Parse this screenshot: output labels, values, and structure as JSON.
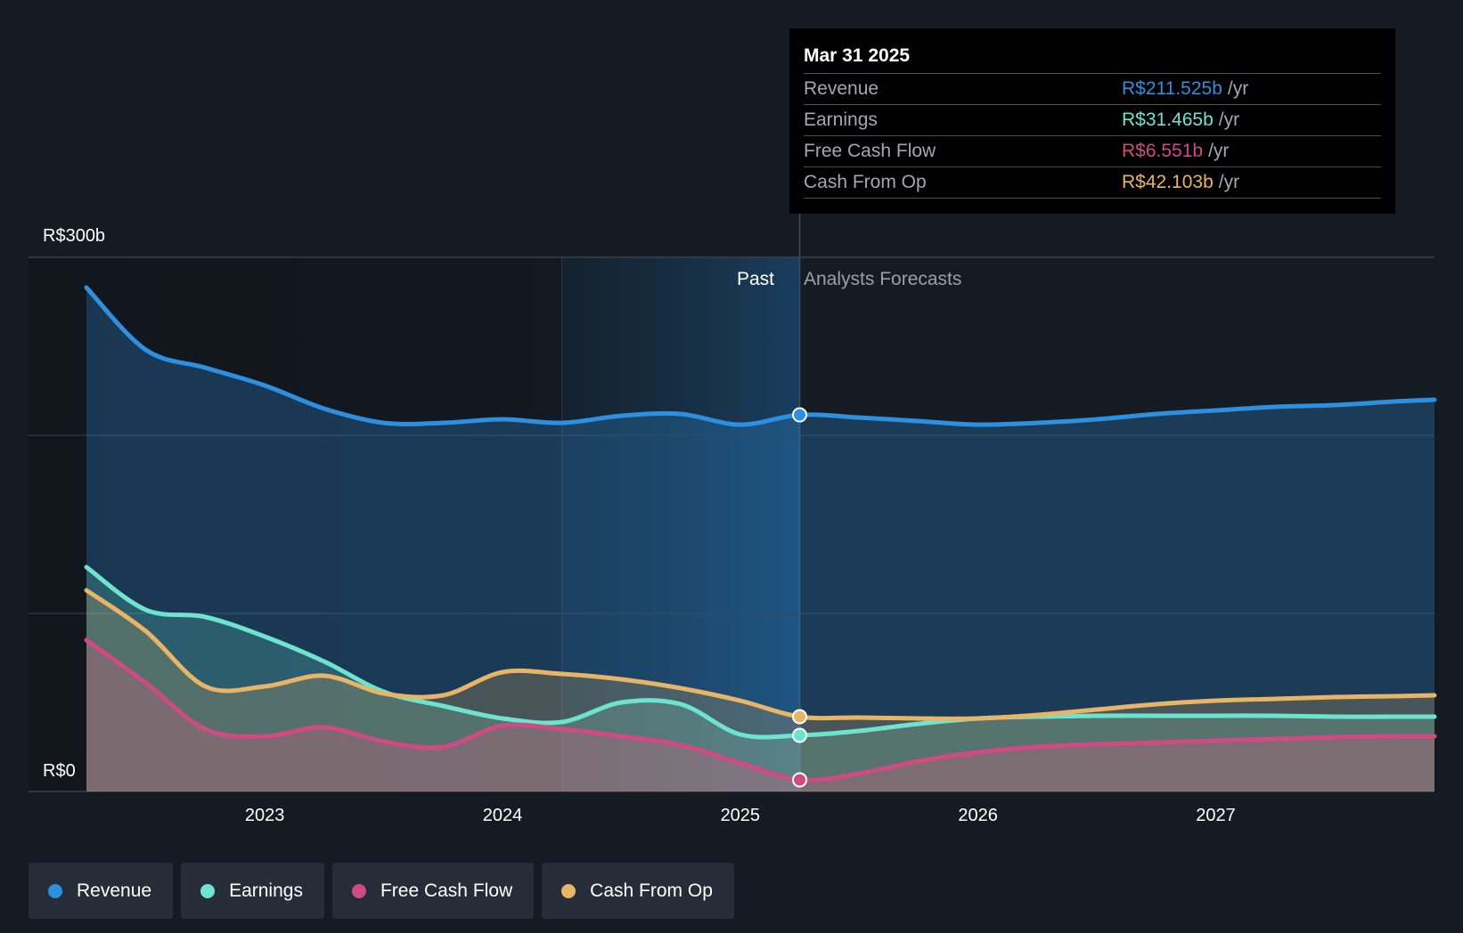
{
  "colors": {
    "revenue": "#2d8fe0",
    "earnings": "#6ee4d0",
    "fcf": "#d04a84",
    "cfo": "#e8b465",
    "background": "#151b23"
  },
  "tooltip": {
    "date": "Mar 31 2025",
    "unit": "/yr",
    "rows": [
      {
        "label": "Revenue",
        "value": "R$211.525b",
        "color": "#2d8fe0"
      },
      {
        "label": "Earnings",
        "value": "R$31.465b",
        "color": "#6ee4d0"
      },
      {
        "label": "Free Cash Flow",
        "value": "R$6.551b",
        "color": "#d04a84"
      },
      {
        "label": "Cash From Op",
        "value": "R$42.103b",
        "color": "#e8b465"
      }
    ]
  },
  "legend": [
    {
      "label": "Revenue",
      "color": "#2d8fe0"
    },
    {
      "label": "Earnings",
      "color": "#6ee4d0"
    },
    {
      "label": "Free Cash Flow",
      "color": "#d04a84"
    },
    {
      "label": "Cash From Op",
      "color": "#e8b465"
    }
  ],
  "chart_data": {
    "type": "line",
    "title": "",
    "ylabel_top": "R$300b",
    "ylabel_bottom": "R$0",
    "ylim": [
      0,
      300
    ],
    "xlim": [
      2022.25,
      2027.92
    ],
    "gridlines": [
      0,
      100,
      200,
      300
    ],
    "xticks": [
      2023,
      2024,
      2025,
      2026,
      2027
    ],
    "xtick_labels": [
      "2023",
      "2024",
      "2025",
      "2026",
      "2027"
    ],
    "past_label": "Past",
    "forecast_label": "Analysts Forecasts",
    "past_end": 2025.25,
    "highlight_start": 2024.25,
    "series": [
      {
        "name": "Revenue",
        "key": "revenue",
        "x": [
          2022.25,
          2022.5,
          2022.75,
          2023.0,
          2023.25,
          2023.5,
          2023.75,
          2024.0,
          2024.25,
          2024.5,
          2024.75,
          2025.0,
          2025.25,
          2025.5,
          2025.75,
          2026.0,
          2026.25,
          2026.5,
          2026.75,
          2027.0,
          2027.25,
          2027.5,
          2027.75,
          2027.92
        ],
        "values": [
          283,
          248,
          238,
          228,
          215,
          207,
          207,
          209,
          207,
          211,
          212,
          206,
          211.5,
          210,
          208,
          206,
          207,
          209,
          212,
          214,
          216,
          217,
          219,
          220
        ]
      },
      {
        "name": "Earnings",
        "key": "earnings",
        "x": [
          2022.25,
          2022.5,
          2022.75,
          2023.0,
          2023.25,
          2023.5,
          2023.75,
          2024.0,
          2024.25,
          2024.5,
          2024.75,
          2025.0,
          2025.25,
          2025.5,
          2025.75,
          2026.0,
          2026.25,
          2026.5,
          2026.75,
          2027.0,
          2027.25,
          2027.5,
          2027.75,
          2027.92
        ],
        "values": [
          126,
          102,
          98,
          87,
          73,
          56,
          48,
          41,
          39,
          50,
          49,
          32,
          31.5,
          34,
          38,
          41,
          42,
          42.5,
          42.5,
          42.5,
          42.5,
          42,
          42,
          42
        ]
      },
      {
        "name": "Free Cash Flow",
        "key": "fcf",
        "x": [
          2022.25,
          2022.5,
          2022.75,
          2023.0,
          2023.25,
          2023.5,
          2023.75,
          2024.0,
          2024.25,
          2024.5,
          2024.75,
          2025.0,
          2025.25,
          2025.5,
          2025.75,
          2026.0,
          2026.25,
          2026.5,
          2026.75,
          2027.0,
          2027.25,
          2027.5,
          2027.75,
          2027.92
        ],
        "values": [
          85,
          61,
          35,
          31,
          36,
          28,
          25,
          37,
          35,
          31,
          26,
          16,
          6.5,
          10,
          17,
          22,
          25,
          26.5,
          27.5,
          28.5,
          29.5,
          30.5,
          31,
          31
        ]
      },
      {
        "name": "Cash From Op",
        "key": "cfo",
        "x": [
          2022.25,
          2022.5,
          2022.75,
          2023.0,
          2023.25,
          2023.5,
          2023.75,
          2024.0,
          2024.25,
          2024.5,
          2024.75,
          2025.0,
          2025.25,
          2025.5,
          2025.75,
          2026.0,
          2026.25,
          2026.5,
          2026.75,
          2027.0,
          2027.25,
          2027.5,
          2027.75,
          2027.92
        ],
        "values": [
          113,
          90,
          59,
          59,
          65,
          55,
          54,
          67,
          66,
          63,
          58,
          51,
          42,
          41.5,
          41,
          41,
          43,
          46,
          49,
          51,
          52,
          53,
          53.5,
          54
        ]
      }
    ],
    "marker_x": 2025.25
  }
}
